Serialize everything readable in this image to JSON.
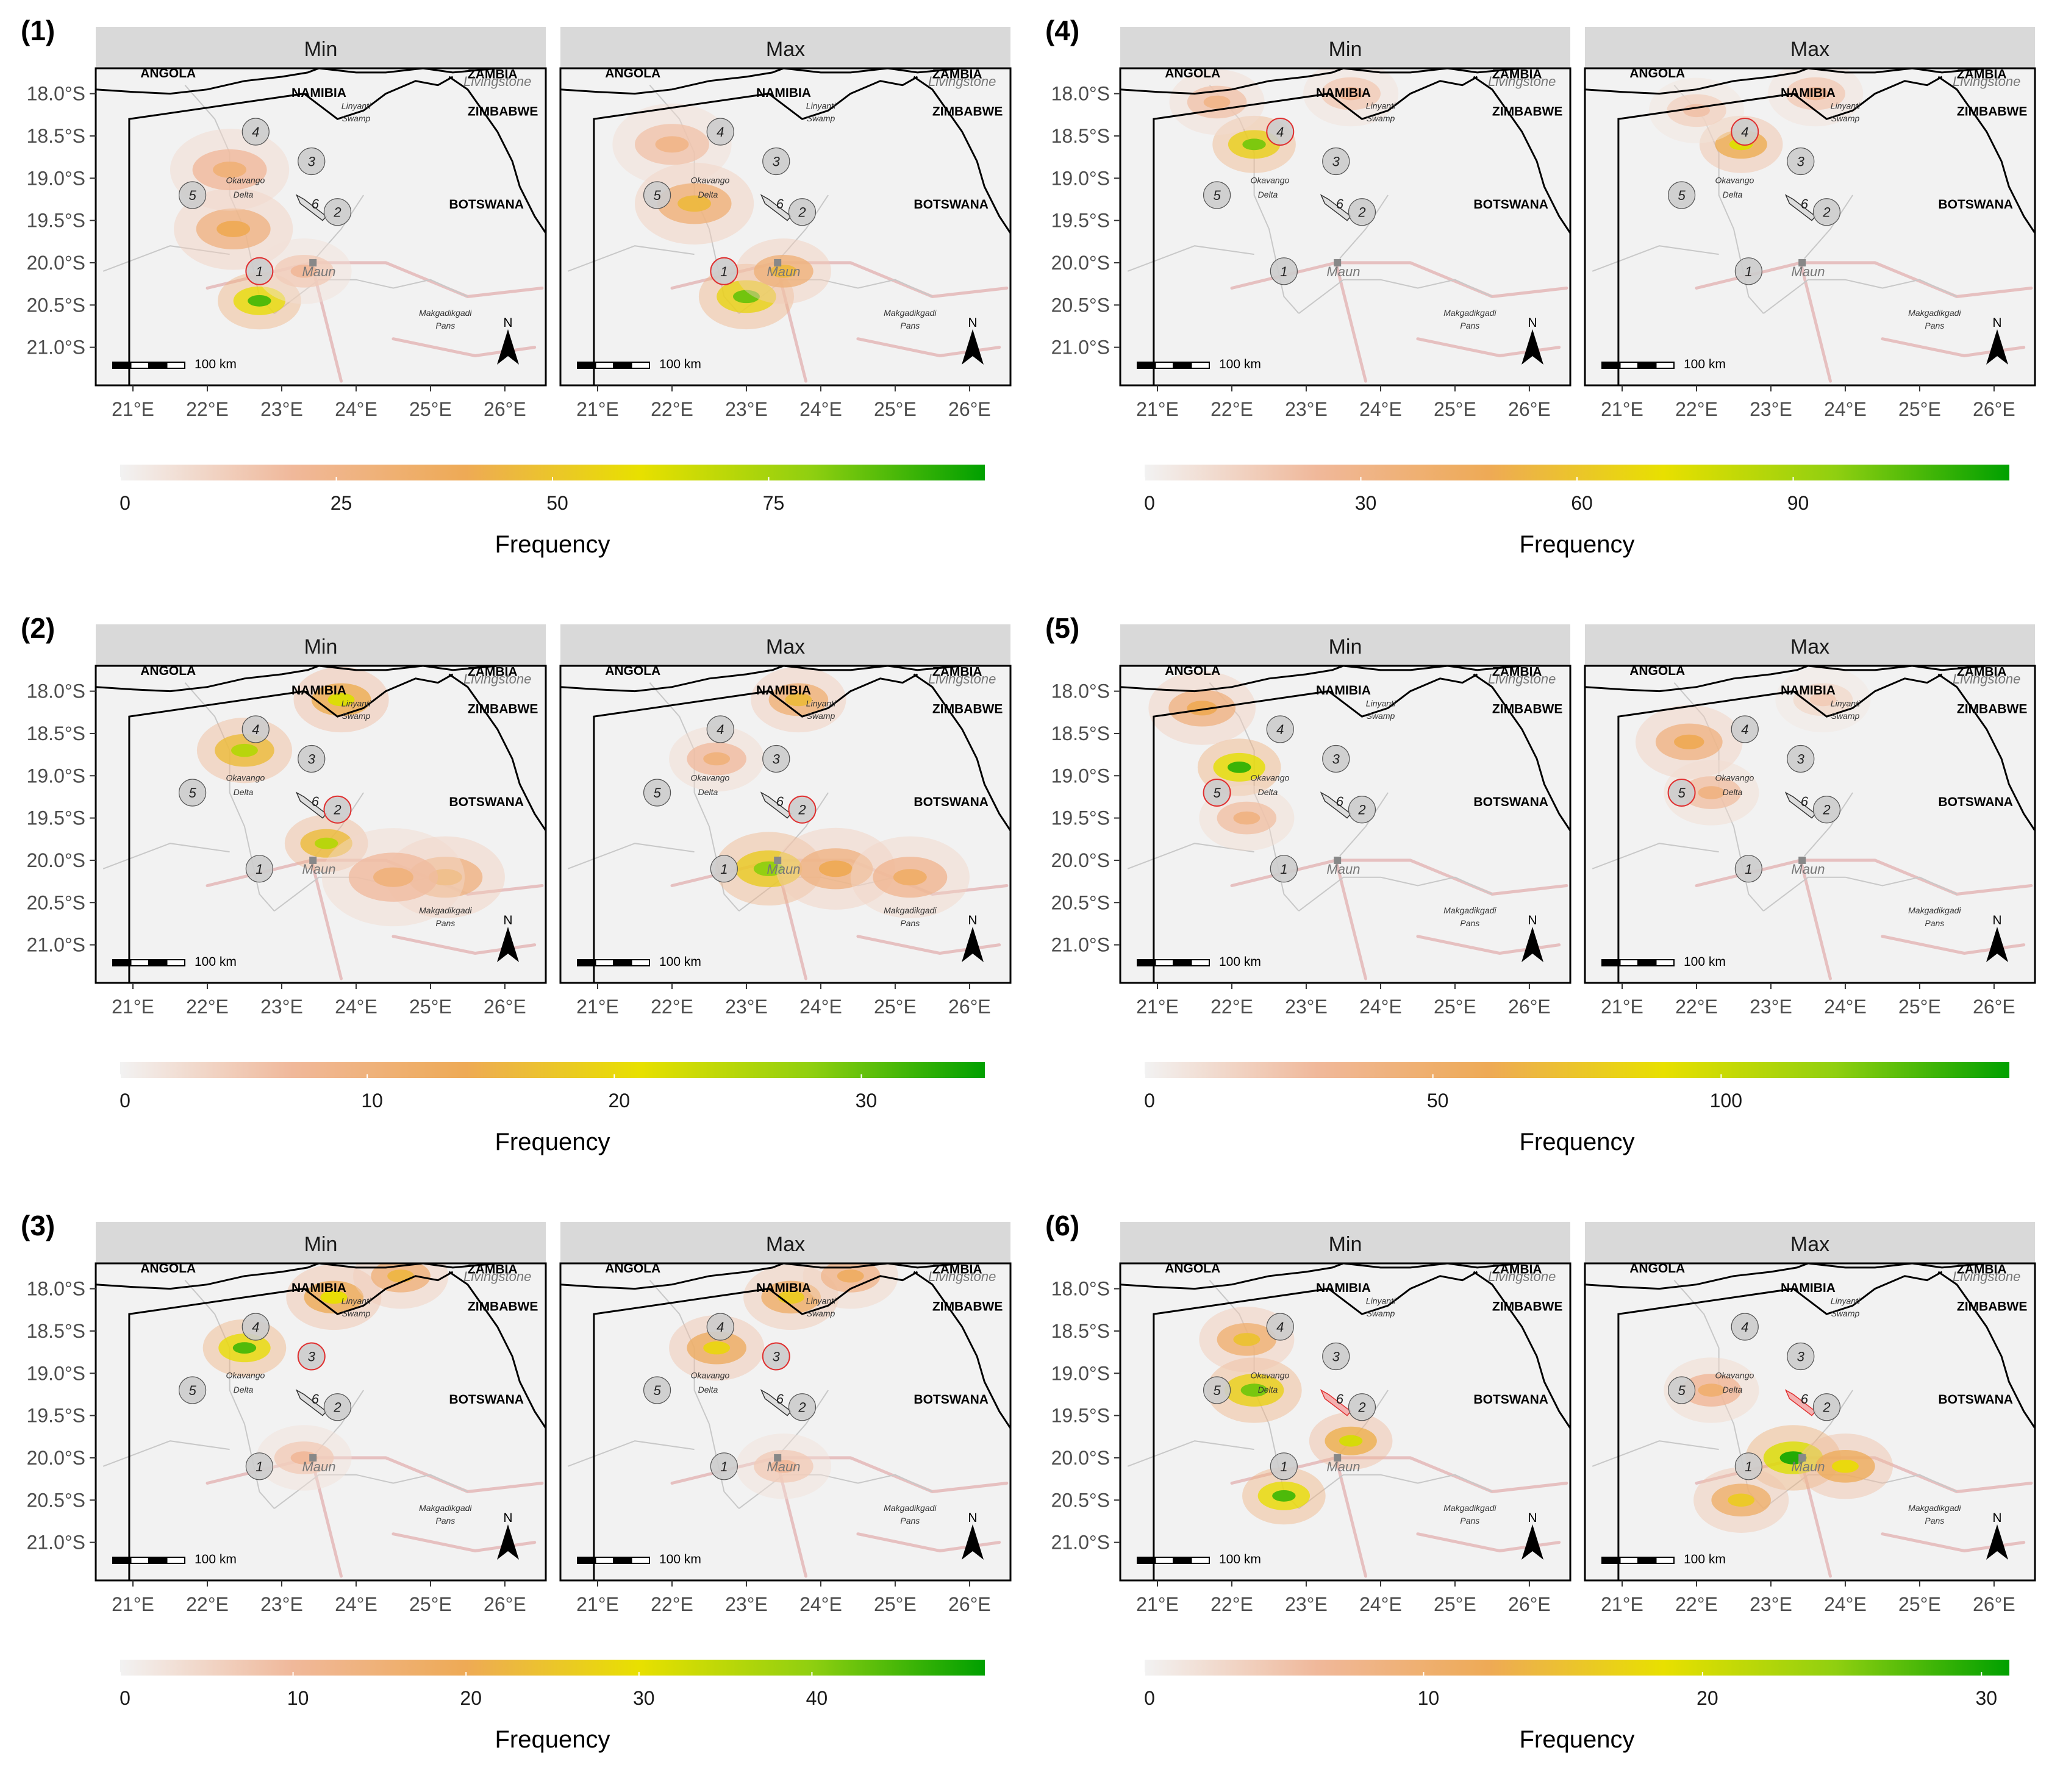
{
  "figure": {
    "strip_labels": [
      "Min",
      "Max"
    ],
    "colorbar_title": "Frequency",
    "colors": {
      "ramp": [
        "#f2f2f2",
        "#f0b89a",
        "#eeaa55",
        "#e8e000",
        "#8fcf10",
        "#00a000"
      ],
      "background": "#f2f2f2",
      "strip": "#d9d9d9",
      "site_circle": "#cccccc",
      "site_highlight": "#e03030",
      "border": "#000000",
      "river": "#c8c8c8",
      "road": "#e6c0c0"
    },
    "x_axis_ticks": [
      "21°E",
      "22°E",
      "23°E",
      "24°E",
      "25°E",
      "26°E"
    ],
    "y_axis_ticks": [
      "18.0°S",
      "18.5°S",
      "19.0°S",
      "19.5°S",
      "20.0°S",
      "20.5°S",
      "21.0°S"
    ]
  },
  "map": {
    "labels": {
      "angola": "ANGOLA",
      "namibia": "NAMIBIA",
      "zambia": "ZAMBIA",
      "livingstone": "Livingstone",
      "zimbabwe": "ZIMBABWE",
      "botswana": "BOTSWANA",
      "linyanti": "Linyanti",
      "swamp": "Swamp",
      "okavango": "Okavango",
      "delta": "Delta",
      "maun": "Maun",
      "makgadikgadi": "Makgadikgadi",
      "pans": "Pans",
      "scale": "100 km",
      "north": "N"
    },
    "sites": [
      {
        "id": "1",
        "lon": 22.7,
        "lat": -20.1
      },
      {
        "id": "2",
        "lon": 23.75,
        "lat": -19.4
      },
      {
        "id": "3",
        "lon": 23.4,
        "lat": -18.8
      },
      {
        "id": "4",
        "lon": 22.65,
        "lat": -18.45
      },
      {
        "id": "5",
        "lon": 21.8,
        "lat": -19.2
      },
      {
        "id": "6",
        "lon": 23.45,
        "lat": -19.3
      }
    ]
  },
  "panels": [
    {
      "label": "(1)",
      "highlight": "1",
      "colorbar_ticks": [
        "0",
        "25",
        "50",
        "75"
      ],
      "tick_values": [
        0,
        25,
        50,
        75
      ],
      "max": 100,
      "hotspots": {
        "min": [
          {
            "lon": 22.7,
            "lat": -20.45,
            "v": 90,
            "r": 0.35
          },
          {
            "lon": 22.35,
            "lat": -19.6,
            "v": 40,
            "r": 0.5
          },
          {
            "lon": 22.3,
            "lat": -18.9,
            "v": 30,
            "r": 0.5
          },
          {
            "lon": 23.3,
            "lat": -20.1,
            "v": 20,
            "r": 0.4
          }
        ],
        "max": [
          {
            "lon": 23.0,
            "lat": -20.4,
            "v": 85,
            "r": 0.4
          },
          {
            "lon": 22.3,
            "lat": -19.3,
            "v": 45,
            "r": 0.5
          },
          {
            "lon": 23.5,
            "lat": -20.1,
            "v": 45,
            "r": 0.4
          },
          {
            "lon": 22.0,
            "lat": -18.6,
            "v": 25,
            "r": 0.5
          }
        ]
      }
    },
    {
      "label": "(2)",
      "highlight": "2",
      "colorbar_ticks": [
        "0",
        "10",
        "20",
        "30"
      ],
      "tick_values": [
        0,
        10,
        20,
        30
      ],
      "max": 35,
      "hotspots": {
        "min": [
          {
            "lon": 23.6,
            "lat": -19.8,
            "v": 25,
            "r": 0.35
          },
          {
            "lon": 22.5,
            "lat": -18.7,
            "v": 25,
            "r": 0.4
          },
          {
            "lon": 23.8,
            "lat": -18.1,
            "v": 22,
            "r": 0.4
          },
          {
            "lon": 25.2,
            "lat": -20.2,
            "v": 14,
            "r": 0.5
          },
          {
            "lon": 24.5,
            "lat": -20.2,
            "v": 10,
            "r": 0.6
          }
        ],
        "max": [
          {
            "lon": 23.3,
            "lat": -20.1,
            "v": 28,
            "r": 0.45
          },
          {
            "lon": 24.2,
            "lat": -20.1,
            "v": 14,
            "r": 0.5
          },
          {
            "lon": 25.2,
            "lat": -20.2,
            "v": 12,
            "r": 0.5
          },
          {
            "lon": 23.7,
            "lat": -18.1,
            "v": 16,
            "r": 0.4
          },
          {
            "lon": 22.6,
            "lat": -18.8,
            "v": 10,
            "r": 0.4
          }
        ]
      }
    },
    {
      "label": "(3)",
      "highlight": "3",
      "colorbar_ticks": [
        "0",
        "10",
        "20",
        "30",
        "40"
      ],
      "tick_values": [
        0,
        10,
        20,
        30,
        40
      ],
      "max": 50,
      "hotspots": {
        "min": [
          {
            "lon": 22.5,
            "lat": -18.7,
            "v": 45,
            "r": 0.35
          },
          {
            "lon": 23.7,
            "lat": -18.1,
            "v": 30,
            "r": 0.4
          },
          {
            "lon": 24.6,
            "lat": -17.85,
            "v": 22,
            "r": 0.4
          },
          {
            "lon": 23.3,
            "lat": -20.0,
            "v": 10,
            "r": 0.4
          }
        ],
        "max": [
          {
            "lon": 22.6,
            "lat": -18.7,
            "v": 28,
            "r": 0.4
          },
          {
            "lon": 23.6,
            "lat": -18.1,
            "v": 26,
            "r": 0.4
          },
          {
            "lon": 24.4,
            "lat": -17.85,
            "v": 18,
            "r": 0.4
          },
          {
            "lon": 23.5,
            "lat": -20.1,
            "v": 10,
            "r": 0.4
          }
        ]
      }
    },
    {
      "label": "(4)",
      "highlight": "4",
      "colorbar_ticks": [
        "0",
        "30",
        "60",
        "90"
      ],
      "tick_values": [
        0,
        30,
        60,
        90
      ],
      "max": 120,
      "hotspots": {
        "min": [
          {
            "lon": 22.3,
            "lat": -18.6,
            "v": 100,
            "r": 0.35
          },
          {
            "lon": 21.8,
            "lat": -18.1,
            "v": 30,
            "r": 0.4
          },
          {
            "lon": 23.6,
            "lat": -18.0,
            "v": 25,
            "r": 0.4
          }
        ],
        "max": [
          {
            "lon": 22.6,
            "lat": -18.6,
            "v": 75,
            "r": 0.35
          },
          {
            "lon": 22.0,
            "lat": -18.2,
            "v": 20,
            "r": 0.4
          },
          {
            "lon": 23.6,
            "lat": -18.0,
            "v": 25,
            "r": 0.4
          }
        ]
      }
    },
    {
      "label": "(5)",
      "highlight": "5",
      "colorbar_ticks": [
        "0",
        "50",
        "100"
      ],
      "tick_values": [
        0,
        50,
        100
      ],
      "max": 150,
      "hotspots": {
        "min": [
          {
            "lon": 22.1,
            "lat": -18.9,
            "v": 140,
            "r": 0.35
          },
          {
            "lon": 21.6,
            "lat": -18.2,
            "v": 60,
            "r": 0.45
          },
          {
            "lon": 22.2,
            "lat": -19.5,
            "v": 40,
            "r": 0.4
          }
        ],
        "max": [
          {
            "lon": 21.9,
            "lat": -18.6,
            "v": 60,
            "r": 0.45
          },
          {
            "lon": 22.2,
            "lat": -19.2,
            "v": 40,
            "r": 0.4
          },
          {
            "lon": 23.7,
            "lat": -18.1,
            "v": 20,
            "r": 0.4
          }
        ]
      }
    },
    {
      "label": "(6)",
      "highlight": "6",
      "colorbar_ticks": [
        "0",
        "10",
        "20",
        "30"
      ],
      "tick_values": [
        0,
        10,
        20,
        30
      ],
      "max": 31,
      "hotspots": {
        "min": [
          {
            "lon": 22.7,
            "lat": -20.45,
            "v": 28,
            "r": 0.35
          },
          {
            "lon": 22.3,
            "lat": -19.2,
            "v": 26,
            "r": 0.4
          },
          {
            "lon": 23.6,
            "lat": -19.8,
            "v": 20,
            "r": 0.35
          },
          {
            "lon": 22.2,
            "lat": -18.6,
            "v": 15,
            "r": 0.4
          }
        ],
        "max": [
          {
            "lon": 23.3,
            "lat": -20.0,
            "v": 30,
            "r": 0.4
          },
          {
            "lon": 22.6,
            "lat": -20.5,
            "v": 16,
            "r": 0.4
          },
          {
            "lon": 24.0,
            "lat": -20.1,
            "v": 18,
            "r": 0.4
          },
          {
            "lon": 22.2,
            "lat": -19.2,
            "v": 10,
            "r": 0.4
          }
        ]
      }
    }
  ]
}
